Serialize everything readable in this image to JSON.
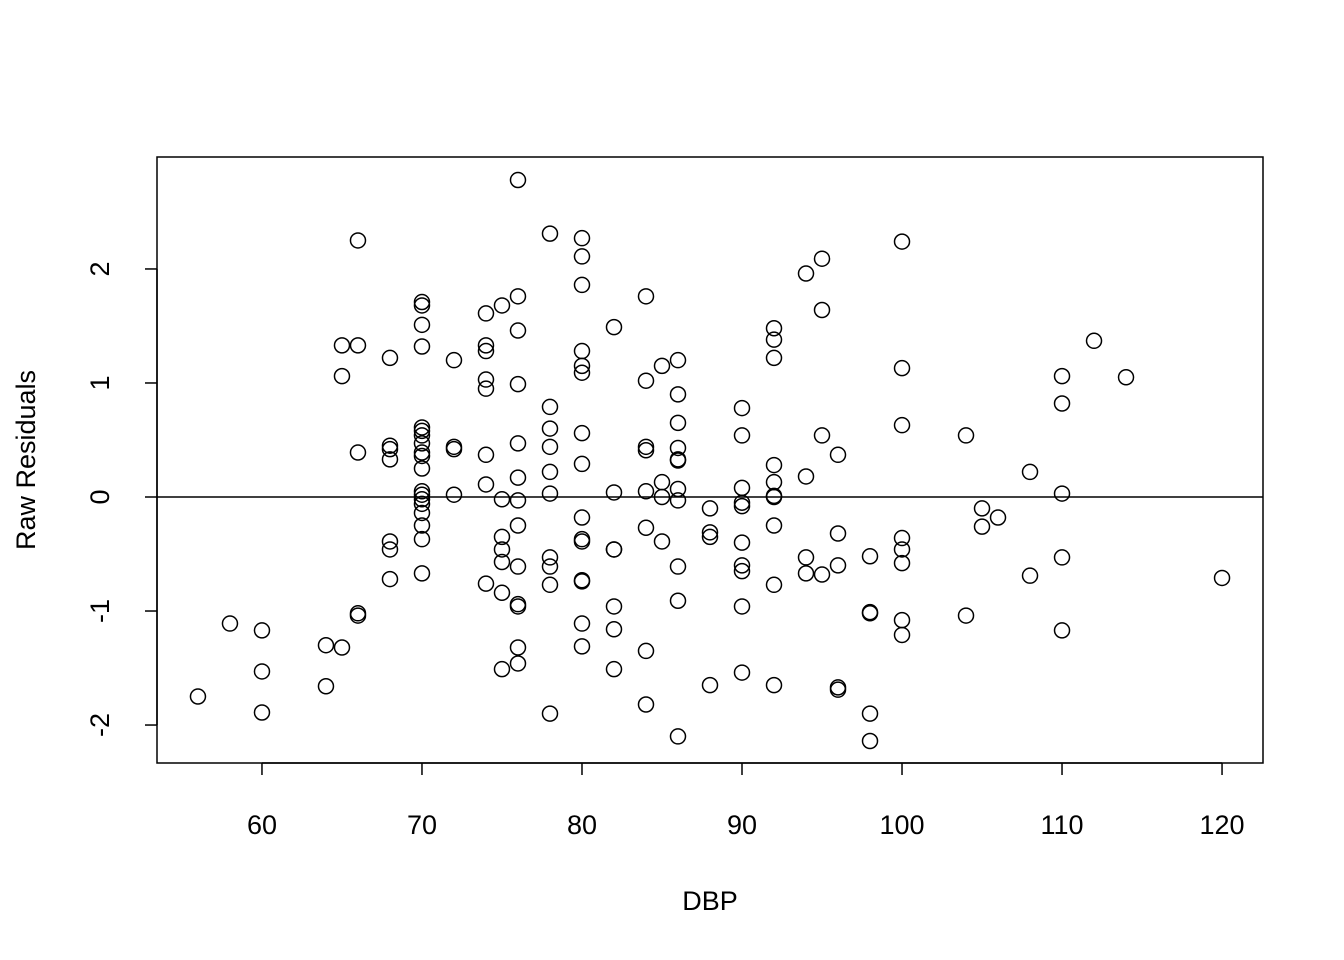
{
  "chart_data": {
    "type": "scatter",
    "x_label": "DBP",
    "y_label": "Raw Residuals",
    "x": [
      56,
      58,
      60,
      60,
      60,
      64,
      64,
      65,
      65,
      65,
      66,
      66,
      66,
      66,
      66,
      68,
      68,
      68,
      68,
      68,
      68,
      68,
      70,
      70,
      70,
      70,
      70,
      70,
      70,
      70,
      70,
      70,
      70,
      70,
      70,
      70,
      70,
      70,
      70,
      70,
      70,
      72,
      72,
      72,
      72,
      74,
      74,
      74,
      74,
      74,
      74,
      74,
      74,
      75,
      75,
      75,
      75,
      75,
      75,
      75,
      76,
      76,
      76,
      76,
      76,
      76,
      76,
      76,
      76,
      76,
      76,
      76,
      76,
      78,
      78,
      78,
      78,
      78,
      78,
      78,
      78,
      78,
      78,
      80,
      80,
      80,
      80,
      80,
      80,
      80,
      80,
      80,
      80,
      80,
      80,
      80,
      80,
      80,
      82,
      82,
      82,
      82,
      82,
      82,
      82,
      84,
      84,
      84,
      84,
      84,
      84,
      84,
      84,
      85,
      85,
      85,
      85,
      86,
      86,
      86,
      86,
      86,
      86,
      86,
      86,
      86,
      86,
      86,
      88,
      88,
      88,
      88,
      90,
      90,
      90,
      90,
      90,
      90,
      90,
      90,
      90,
      90,
      92,
      92,
      92,
      92,
      92,
      92,
      92,
      92,
      92,
      92,
      94,
      94,
      94,
      94,
      95,
      95,
      95,
      95,
      96,
      96,
      96,
      96,
      96,
      98,
      98,
      98,
      98,
      98,
      100,
      100,
      100,
      100,
      100,
      100,
      100,
      100,
      104,
      104,
      105,
      105,
      106,
      108,
      108,
      110,
      110,
      110,
      110,
      110,
      112,
      114,
      120
    ],
    "values": [
      -1.75,
      -1.11,
      -1.17,
      -1.53,
      -1.89,
      -1.3,
      -1.66,
      1.33,
      1.06,
      -1.32,
      2.25,
      1.33,
      0.39,
      -1.02,
      -1.04,
      1.22,
      0.45,
      0.42,
      0.33,
      -0.39,
      -0.46,
      -0.72,
      1.71,
      1.68,
      1.51,
      1.32,
      0.61,
      0.58,
      0.54,
      0.47,
      0.39,
      0.36,
      0.25,
      0.05,
      0.02,
      -0.02,
      -0.06,
      -0.14,
      -0.25,
      -0.37,
      -0.67,
      1.2,
      0.44,
      0.42,
      0.02,
      1.61,
      1.33,
      1.28,
      1.03,
      0.95,
      0.37,
      0.11,
      -0.76,
      1.68,
      -0.02,
      -0.35,
      -0.46,
      -0.57,
      -0.84,
      -1.51,
      2.78,
      1.76,
      1.46,
      0.99,
      0.47,
      0.17,
      -0.03,
      -0.25,
      -0.61,
      -0.94,
      -0.96,
      -1.32,
      -1.46,
      2.31,
      0.79,
      0.6,
      0.44,
      0.22,
      0.03,
      -0.53,
      -0.61,
      -0.77,
      -1.9,
      2.27,
      2.11,
      1.86,
      1.28,
      1.15,
      1.09,
      0.56,
      0.29,
      -0.18,
      -0.37,
      -0.39,
      -0.73,
      -0.74,
      -1.11,
      -1.31,
      1.49,
      0.04,
      -0.46,
      -0.46,
      -0.96,
      -1.16,
      -1.51,
      1.76,
      1.02,
      0.44,
      0.41,
      0.05,
      -0.27,
      -1.35,
      -1.82,
      1.15,
      0.13,
      0.0,
      -0.39,
      1.2,
      0.9,
      0.65,
      0.43,
      0.33,
      0.32,
      0.07,
      -0.03,
      -0.61,
      -0.91,
      -2.1,
      -0.1,
      -0.31,
      -0.35,
      -1.65,
      0.78,
      0.54,
      0.08,
      -0.05,
      -0.08,
      -0.4,
      -0.6,
      -0.65,
      -0.96,
      -1.54,
      1.48,
      1.38,
      1.22,
      0.28,
      0.13,
      0.01,
      0.0,
      -0.25,
      -0.77,
      -1.65,
      1.96,
      0.18,
      -0.53,
      -0.67,
      2.09,
      1.64,
      0.54,
      -0.68,
      0.37,
      -0.32,
      -0.6,
      -1.67,
      -1.69,
      -0.52,
      -1.01,
      -1.02,
      -1.9,
      -2.14,
      2.24,
      1.13,
      0.63,
      -0.36,
      -0.46,
      -0.58,
      -1.08,
      -1.21,
      0.54,
      -1.04,
      -0.1,
      -0.26,
      -0.18,
      0.22,
      -0.69,
      1.06,
      0.82,
      0.03,
      -0.53,
      -1.17,
      1.37,
      1.05,
      -0.71
    ],
    "hline": 0,
    "xlim": [
      53.44,
      122.56
    ],
    "ylim": [
      -2.333,
      2.982
    ],
    "xticks": [
      60,
      70,
      80,
      90,
      100,
      110,
      120
    ],
    "yticks": [
      -2,
      -1,
      0,
      1,
      2
    ]
  }
}
